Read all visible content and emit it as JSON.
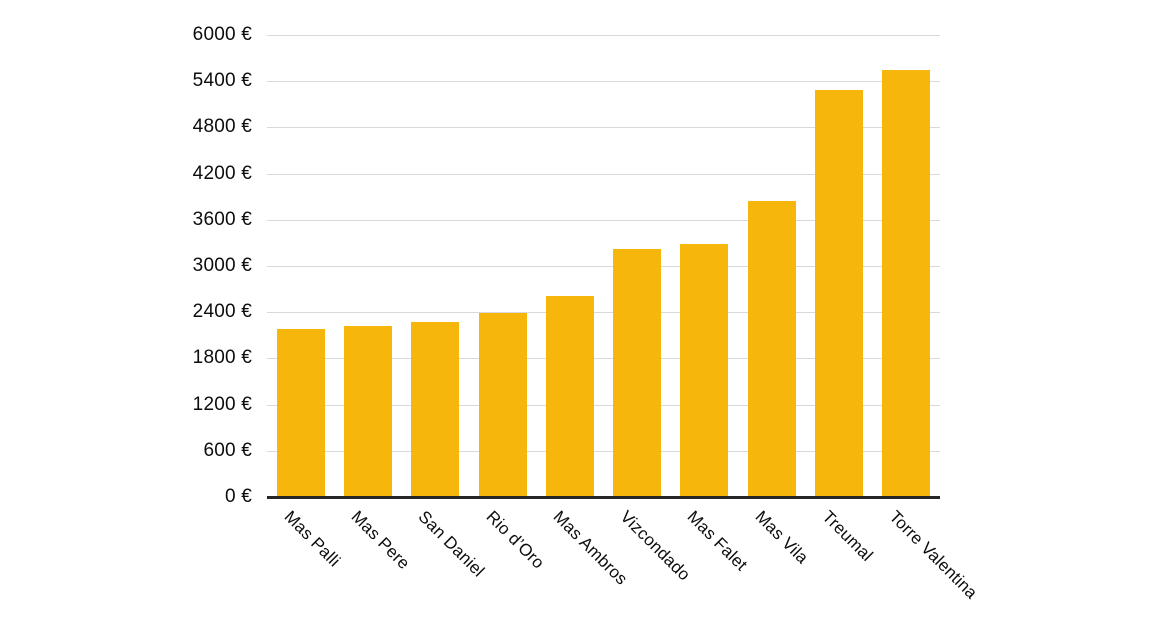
{
  "chart_data": {
    "type": "bar",
    "title": "",
    "xlabel": "",
    "ylabel": "",
    "categories": [
      "Mas Palli",
      "Mas Pere",
      "San Daniel",
      "Rio d’Oro",
      "Mas Ambros",
      "Vizcondado",
      "Mas Falet",
      "Mas Vila",
      "Treumal",
      "Torre Valentina"
    ],
    "values": [
      2180,
      2225,
      2270,
      2390,
      2615,
      3225,
      3285,
      3840,
      5285,
      5550
    ],
    "ylim": [
      0,
      6000
    ],
    "y_tick_step": 600,
    "y_tick_labels": [
      "0 €",
      "600 €",
      "1200 €",
      "1800 €",
      "2400 €",
      "3000 €",
      "3600 €",
      "4200 €",
      "4800 €",
      "5400 €",
      "6000 €"
    ],
    "currency_suffix": " €",
    "grid": true,
    "legend": false,
    "bar_color": "#F7B60B",
    "gridline_color": "#D9D9D9",
    "axis_color": "#262626",
    "text_color": "#0D0D0D",
    "background": "#FFFFFF"
  }
}
